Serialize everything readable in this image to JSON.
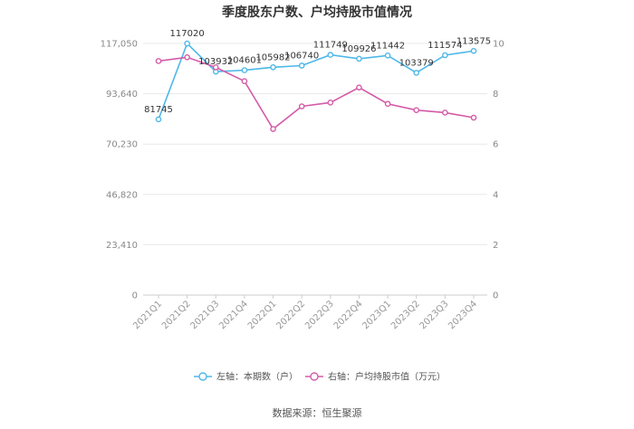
{
  "chart_data": {
    "type": "line",
    "title": "季度股东户数、户均持股市值情况",
    "categories": [
      "2021Q1",
      "2021Q2",
      "2021Q3",
      "2021Q4",
      "2022Q1",
      "2022Q2",
      "2022Q3",
      "2022Q4",
      "2023Q1",
      "2023Q2",
      "2023Q3",
      "2023Q4"
    ],
    "left_axis": {
      "min": 0,
      "max": 117050,
      "ticks": [
        "0",
        "23,410",
        "46,820",
        "70,230",
        "93,640",
        "117,050"
      ]
    },
    "right_axis": {
      "min": 0,
      "max": 10,
      "ticks": [
        "0",
        "2",
        "4",
        "6",
        "8",
        "10"
      ]
    },
    "grid": true,
    "legend_position": "bottom",
    "series": [
      {
        "name": "左轴：本期数（户）",
        "axis": "left",
        "color": "#4db8e8",
        "values": [
          81745,
          117020,
          103932,
          104601,
          105982,
          106740,
          111749,
          109926,
          111442,
          103379,
          111574,
          113575
        ],
        "labels": [
          "81745",
          "117020",
          "103932",
          "104601",
          "105982",
          "106740",
          "111749",
          "109926",
          "111442",
          "103379",
          "111574",
          "113575"
        ]
      },
      {
        "name": "右轴：户均持股市值（万元）",
        "axis": "right",
        "color": "#d45aa8",
        "values": [
          9.3,
          9.45,
          9.05,
          8.5,
          6.6,
          7.5,
          7.65,
          8.25,
          7.6,
          7.35,
          7.25,
          7.05
        ]
      }
    ],
    "source": "数据来源：恒生聚源"
  }
}
